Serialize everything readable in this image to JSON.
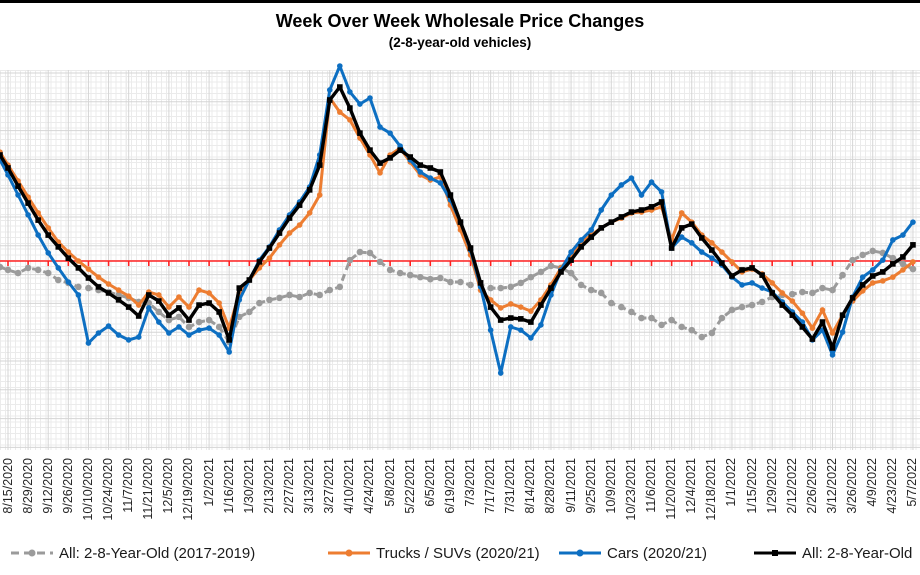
{
  "title": "Week Over Week Wholesale Price Changes",
  "subtitle": "(2-8-year-old vehicles)",
  "colors": {
    "gray_series": "#9b9b9b",
    "orange_series": "#ED7D31",
    "blue_series": "#0D6FC2",
    "black_series": "#000000",
    "red_reference_line": "#FF2020",
    "major_grid": "#d5d5d5"
  },
  "chart_data": {
    "type": "line",
    "title": "Week Over Week Wholesale Price Changes",
    "subtitle": "(2-8-year-old vehicles)",
    "legend_position": "bottom",
    "grid": "major horizontal + vertical gridlines with fine minor mesh",
    "x_axis": {
      "note": "weekly data points; one tick label every 2 weeks; labels rotated 90 degrees",
      "tick_labels": [
        "8/15/2020",
        "8/29/2020",
        "9/12/2020",
        "9/26/2020",
        "10/10/2020",
        "10/24/2020",
        "11/7/2020",
        "11/21/2020",
        "12/5/2020",
        "12/19/2020",
        "1/2/2021",
        "1/16/2021",
        "1/30/2021",
        "2/13/2021",
        "2/27/2021",
        "3/13/2021",
        "3/27/2021",
        "4/10/2021",
        "4/24/2021",
        "5/8/2021",
        "5/22/2021",
        "6/5/2021",
        "6/19/2021",
        "7/3/2021",
        "7/17/2021",
        "7/31/2021",
        "8/14/2021",
        "8/28/2021",
        "9/11/2021",
        "9/25/2021",
        "10/9/2021",
        "10/23/2021",
        "11/6/2021",
        "11/20/2021",
        "12/4/2021",
        "12/18/2021",
        "1/1/2022",
        "1/15/2022",
        "1/29/2022",
        "2/12/2022",
        "2/26/2022",
        "3/12/2022",
        "3/26/2022",
        "4/9/2022",
        "4/23/2022",
        "5/7/2022"
      ]
    },
    "y_axis": {
      "labels_visible": false,
      "note": "y-axis tick labels are cropped out of the screenshot; series values below are expressed in units of one major-gridline spacing relative to the red zero reference line (positive = above red line)",
      "red_reference_value": 0,
      "ylim": [
        -6.6,
        6.6
      ]
    },
    "series": [
      {
        "key": "all-2017-2019",
        "name": "All: 2-8-Year-Old (2017-2019)",
        "color": "#9b9b9b",
        "style": "dashed",
        "marker": "circle",
        "left_edge_value": -0.21,
        "values": [
          -0.31,
          -0.42,
          -0.24,
          -0.31,
          -0.42,
          -0.66,
          -0.76,
          -0.9,
          -0.94,
          -1.01,
          -1.08,
          -1.18,
          -1.28,
          -1.42,
          -1.46,
          -1.77,
          -2.05,
          -1.94,
          -2.29,
          -2.12,
          -2.05,
          -2.29,
          -2.81,
          -1.94,
          -1.77,
          -1.46,
          -1.35,
          -1.28,
          -1.18,
          -1.25,
          -1.11,
          -1.18,
          -1.01,
          -0.9,
          0.03,
          0.31,
          0.28,
          -0.03,
          -0.31,
          -0.42,
          -0.49,
          -0.56,
          -0.63,
          -0.59,
          -0.73,
          -0.73,
          -0.83,
          -0.83,
          -0.94,
          -0.94,
          -0.9,
          -0.76,
          -0.56,
          -0.38,
          -0.17,
          -0.24,
          -0.42,
          -0.83,
          -1.01,
          -1.11,
          -1.46,
          -1.6,
          -1.77,
          -1.98,
          -1.98,
          -2.22,
          -2.05,
          -2.29,
          -2.4,
          -2.64,
          -2.5,
          -1.98,
          -1.7,
          -1.6,
          -1.53,
          -1.42,
          -1.25,
          -1.18,
          -1.15,
          -1.08,
          -1.11,
          -0.94,
          -1.01,
          -0.49,
          0.03,
          0.21,
          0.35,
          0.28,
          0.1,
          -0.1,
          -0.28
        ]
      },
      {
        "key": "trucks-suvs",
        "name": "Trucks / SUVs (2020/21)",
        "color": "#ED7D31",
        "style": "solid",
        "marker": "circle",
        "left_edge_value": 3.78,
        "values": [
          3.33,
          2.78,
          2.22,
          1.67,
          1.15,
          0.66,
          0.31,
          0.0,
          -0.28,
          -0.56,
          -0.8,
          -1.01,
          -1.22,
          -1.53,
          -1.08,
          -1.18,
          -1.6,
          -1.25,
          -1.6,
          -1.01,
          -1.11,
          -1.46,
          -2.33,
          -1.11,
          -0.66,
          -0.24,
          0.1,
          0.56,
          0.97,
          1.25,
          1.67,
          2.29,
          5.66,
          5.17,
          4.9,
          4.27,
          3.68,
          3.06,
          3.68,
          3.92,
          3.44,
          2.99,
          2.81,
          2.92,
          1.94,
          1.08,
          0.21,
          -1.01,
          -1.35,
          -1.63,
          -1.49,
          -1.6,
          -1.74,
          -1.35,
          -0.83,
          -0.24,
          0.21,
          0.63,
          0.9,
          1.15,
          1.35,
          1.49,
          1.67,
          1.7,
          1.77,
          1.88,
          0.73,
          1.67,
          1.35,
          0.9,
          0.63,
          0.31,
          -0.03,
          -0.38,
          -0.28,
          -0.45,
          -0.76,
          -1.11,
          -1.39,
          -1.81,
          -2.33,
          -1.7,
          -2.5,
          -1.88,
          -1.39,
          -1.04,
          -0.76,
          -0.69,
          -0.56,
          -0.31,
          -0.03
        ]
      },
      {
        "key": "cars",
        "name": "Cars (2020/21)",
        "color": "#0D6FC2",
        "style": "solid",
        "marker": "circle",
        "left_edge_value": 3.51,
        "values": [
          2.99,
          2.29,
          1.6,
          0.9,
          0.28,
          -0.24,
          -0.73,
          -1.18,
          -2.85,
          -2.5,
          -2.26,
          -2.57,
          -2.74,
          -2.64,
          -1.63,
          -2.12,
          -2.5,
          -2.29,
          -2.57,
          -2.4,
          -2.33,
          -2.57,
          -3.16,
          -1.35,
          -0.66,
          0.03,
          0.49,
          1.08,
          1.6,
          2.05,
          2.57,
          3.68,
          5.94,
          6.77,
          5.87,
          5.45,
          5.66,
          4.65,
          4.44,
          3.99,
          3.51,
          3.09,
          2.88,
          2.71,
          2.12,
          1.35,
          0.38,
          -0.9,
          -2.4,
          -3.89,
          -2.29,
          -2.4,
          -2.67,
          -2.22,
          -1.18,
          -0.31,
          0.31,
          0.73,
          1.08,
          1.77,
          2.29,
          2.64,
          2.88,
          2.29,
          2.74,
          2.4,
          0.45,
          0.83,
          0.63,
          0.31,
          0.1,
          -0.14,
          -0.56,
          -0.83,
          -0.76,
          -0.94,
          -1.08,
          -1.42,
          -1.77,
          -2.12,
          -2.74,
          -2.4,
          -3.26,
          -2.47,
          -1.25,
          -0.56,
          -0.31,
          0.03,
          0.73,
          0.9,
          1.35
        ]
      },
      {
        "key": "all-2020-21",
        "name": "All: 2-8-Year-Old",
        "color": "#000000",
        "style": "solid",
        "marker": "square",
        "left_edge_value": 3.68,
        "values": [
          3.23,
          2.6,
          2.01,
          1.42,
          0.9,
          0.49,
          0.1,
          -0.24,
          -0.59,
          -0.9,
          -1.11,
          -1.35,
          -1.6,
          -1.91,
          -1.18,
          -1.39,
          -1.88,
          -1.63,
          -2.05,
          -1.53,
          -1.46,
          -1.77,
          -2.74,
          -0.94,
          -0.66,
          -0.03,
          0.45,
          0.97,
          1.49,
          1.94,
          2.47,
          3.33,
          5.59,
          6.04,
          5.31,
          4.44,
          3.85,
          3.4,
          3.58,
          3.85,
          3.61,
          3.33,
          3.23,
          3.09,
          2.29,
          1.35,
          0.45,
          -0.76,
          -1.6,
          -2.05,
          -1.98,
          -2.01,
          -2.12,
          -1.53,
          -0.94,
          -0.38,
          0.03,
          0.49,
          0.83,
          1.15,
          1.35,
          1.53,
          1.7,
          1.77,
          1.88,
          2.05,
          0.45,
          1.15,
          1.28,
          0.8,
          0.38,
          -0.07,
          -0.52,
          -0.31,
          -0.24,
          -0.49,
          -1.11,
          -1.53,
          -1.88,
          -2.29,
          -2.71,
          -2.12,
          -3.02,
          -1.88,
          -1.28,
          -0.83,
          -0.52,
          -0.38,
          -0.1,
          0.14,
          0.56
        ]
      }
    ]
  },
  "legend": {
    "items": [
      {
        "label": "All: 2-8-Year-Old (2017-2019)"
      },
      {
        "label": "Trucks / SUVs (2020/21)"
      },
      {
        "label": "Cars (2020/21)"
      },
      {
        "label": "All: 2-8-Year-Old"
      }
    ]
  }
}
